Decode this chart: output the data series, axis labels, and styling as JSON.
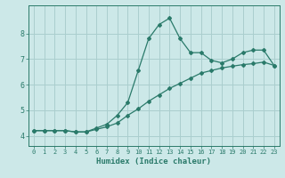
{
  "xlabel": "Humidex (Indice chaleur)",
  "bg_color": "#cce8e8",
  "line_color": "#2a7a6a",
  "grid_color": "#aacece",
  "xlim": [
    -0.5,
    23.5
  ],
  "ylim": [
    3.6,
    9.1
  ],
  "yticks": [
    4,
    5,
    6,
    7,
    8
  ],
  "xticks": [
    0,
    1,
    2,
    3,
    4,
    5,
    6,
    7,
    8,
    9,
    10,
    11,
    12,
    13,
    14,
    15,
    16,
    17,
    18,
    19,
    20,
    21,
    22,
    23
  ],
  "curve1_x": [
    0,
    1,
    2,
    3,
    4,
    5,
    6,
    7,
    8,
    9,
    10,
    11,
    12,
    13,
    14,
    15,
    16,
    17,
    18,
    19,
    20,
    21,
    22,
    23
  ],
  "curve1_y": [
    4.2,
    4.2,
    4.2,
    4.2,
    4.15,
    4.15,
    4.3,
    4.45,
    4.8,
    5.3,
    6.55,
    7.8,
    8.35,
    8.6,
    7.8,
    7.25,
    7.25,
    6.95,
    6.85,
    7.0,
    7.25,
    7.35,
    7.35,
    6.75
  ],
  "curve2_x": [
    0,
    1,
    2,
    3,
    4,
    5,
    6,
    7,
    8,
    9,
    10,
    11,
    12,
    13,
    14,
    15,
    16,
    17,
    18,
    19,
    20,
    21,
    22,
    23
  ],
  "curve2_y": [
    4.2,
    4.2,
    4.2,
    4.2,
    4.15,
    4.15,
    4.25,
    4.35,
    4.5,
    4.8,
    5.05,
    5.35,
    5.6,
    5.85,
    6.05,
    6.25,
    6.45,
    6.55,
    6.65,
    6.72,
    6.78,
    6.82,
    6.88,
    6.75
  ]
}
